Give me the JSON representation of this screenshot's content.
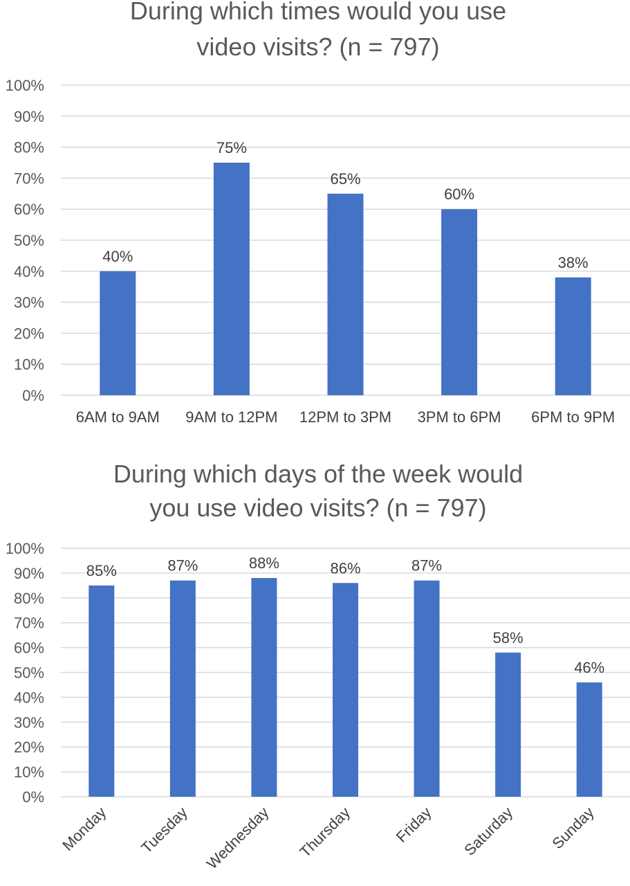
{
  "colors": {
    "bar": "#4472c4",
    "grid": "#d9d9d9",
    "text": "#595959"
  },
  "chart_data": [
    {
      "type": "bar",
      "title_lines": [
        "During which times would you use",
        "video visits? (n = 797)"
      ],
      "categories": [
        "6AM to 9AM",
        "9AM to 12PM",
        "12PM to 3PM",
        "3PM to 6PM",
        "6PM to 9PM"
      ],
      "values": [
        40,
        75,
        65,
        60,
        38
      ],
      "data_labels": [
        "40%",
        "75%",
        "65%",
        "60%",
        "38%"
      ],
      "ylim": [
        0,
        100
      ],
      "y_ticks": [
        "0%",
        "10%",
        "20%",
        "30%",
        "40%",
        "50%",
        "60%",
        "70%",
        "80%",
        "90%",
        "100%"
      ],
      "grid": true,
      "legend": "none"
    },
    {
      "type": "bar",
      "title_lines": [
        "During which days of the week would",
        "you use video visits? (n = 797)"
      ],
      "categories": [
        "Monday",
        "Tuesday",
        "Wednesday",
        "Thursday",
        "Friday",
        "Saturday",
        "Sunday"
      ],
      "values": [
        85,
        87,
        88,
        86,
        87,
        58,
        46
      ],
      "data_labels": [
        "85%",
        "87%",
        "88%",
        "86%",
        "87%",
        "58%",
        "46%"
      ],
      "ylim": [
        0,
        100
      ],
      "y_ticks": [
        "0%",
        "10%",
        "20%",
        "30%",
        "40%",
        "50%",
        "60%",
        "70%",
        "80%",
        "90%",
        "100%"
      ],
      "grid": true,
      "legend": "none"
    }
  ]
}
